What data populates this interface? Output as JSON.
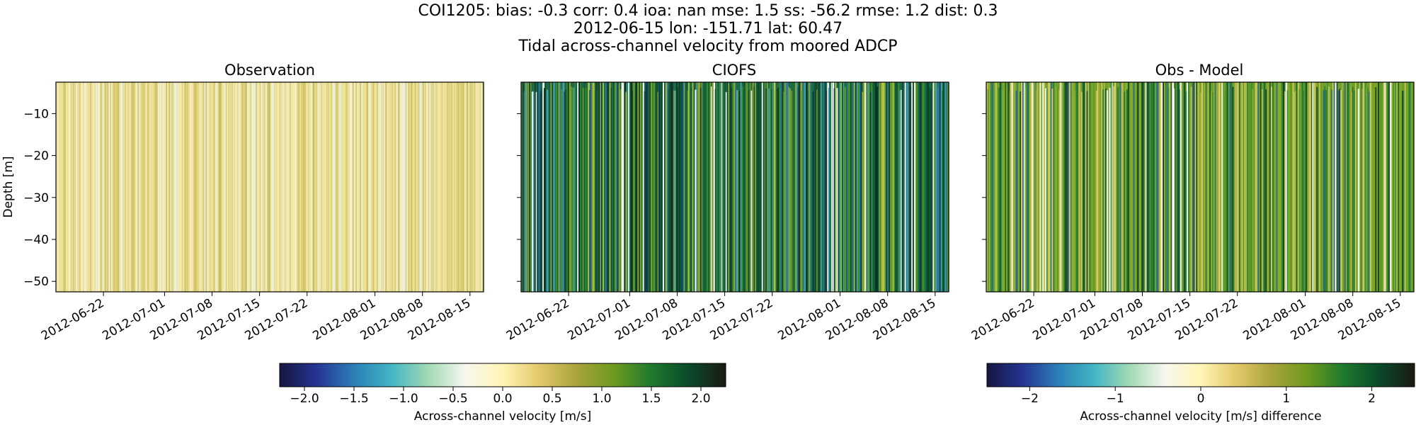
{
  "figure": {
    "title_lines": [
      "COI1205: bias: -0.3  corr: 0.4  ioa: nan  mse: 1.5  ss: -56.2  rmse: 1.2  dist: 0.3",
      "2012-06-15 lon: -151.71 lat: 60.47",
      "Tidal across-channel velocity from moored ADCP"
    ]
  },
  "colors": {
    "colormap": [
      "#16163f",
      "#253494",
      "#2c7fb8",
      "#41b6c4",
      "#a1dab4",
      "#f7f7f0",
      "#fff5b5",
      "#e3c86a",
      "#a8a33a",
      "#6e9a1e",
      "#1e7a2e",
      "#0a4a2a",
      "#1a1a10"
    ],
    "obs_base": "#fbf4c6",
    "obs_stripes": [
      "#e6d77e",
      "#d8c25a",
      "#c9b84a",
      "#eadf9a",
      "#bfb03c",
      "#dfe9e0"
    ],
    "model_stripes": [
      "#0b5a37",
      "#1b6e3a",
      "#3f8f2a",
      "#6f9e25",
      "#0f3d4f",
      "#2d7fa0",
      "#b9c94a",
      "#ffffff",
      "#15472b",
      "#48a6b4",
      "#94a92e",
      "#05301e"
    ],
    "diff_stripes": [
      "#7ea625",
      "#5f9a22",
      "#a4b13a",
      "#1e7a3a",
      "#c9c457",
      "#0d5a2f",
      "#ffffff",
      "#3d8f3a",
      "#e3cf72",
      "#2a6e8a",
      "#8fae2c",
      "#153d2a"
    ]
  },
  "chart_data": [
    {
      "type": "heatmap",
      "title": "Observation",
      "ylabel": "Depth [m]",
      "xlabel": "",
      "x_range": [
        "2012-06-15",
        "2012-08-17"
      ],
      "ylim": [
        -52.5,
        -2.5
      ],
      "xticks": [
        "2012-06-22",
        "2012-07-01",
        "2012-07-08",
        "2012-07-15",
        "2012-07-22",
        "2012-08-01",
        "2012-08-08",
        "2012-08-15"
      ],
      "yticks": [
        -10,
        -20,
        -30,
        -40,
        -50
      ],
      "ytick_labels": [
        "−10",
        "−20",
        "−30",
        "−40",
        "−50"
      ],
      "value_range": [
        -2.25,
        2.25
      ],
      "typical_values": [
        0.1,
        0.5
      ]
    },
    {
      "type": "heatmap",
      "title": "CIOFS",
      "x_range": [
        "2012-06-15",
        "2012-08-17"
      ],
      "ylim": [
        -52.5,
        -2.5
      ],
      "xticks": [
        "2012-06-22",
        "2012-07-01",
        "2012-07-08",
        "2012-07-15",
        "2012-07-22",
        "2012-08-01",
        "2012-08-08",
        "2012-08-15"
      ],
      "value_range": [
        -2.25,
        2.25
      ],
      "typical_values": [
        -1.5,
        2.2
      ]
    },
    {
      "type": "heatmap",
      "title": "Obs - Model",
      "x_range": [
        "2012-06-15",
        "2012-08-17"
      ],
      "ylim": [
        -52.5,
        -2.5
      ],
      "xticks": [
        "2012-06-22",
        "2012-07-01",
        "2012-07-08",
        "2012-07-15",
        "2012-07-22",
        "2012-08-01",
        "2012-08-08",
        "2012-08-15"
      ],
      "value_range": [
        -2.5,
        2.5
      ],
      "typical_values": [
        -1.0,
        2.5
      ]
    }
  ],
  "colorbars": [
    {
      "label": "Across-channel velocity [m/s]",
      "range": [
        -2.25,
        2.25
      ],
      "ticks": [
        -2.0,
        -1.5,
        -1.0,
        -0.5,
        0.0,
        0.5,
        1.0,
        1.5,
        2.0
      ],
      "tick_labels": [
        "−2.0",
        "−1.5",
        "−1.0",
        "−0.5",
        "0.0",
        "0.5",
        "1.0",
        "1.5",
        "2.0"
      ]
    },
    {
      "label": "Across-channel velocity [m/s] difference",
      "range": [
        -2.5,
        2.5
      ],
      "ticks": [
        -2,
        -1,
        0,
        1,
        2
      ],
      "tick_labels": [
        "−2",
        "−1",
        "0",
        "1",
        "2"
      ]
    }
  ]
}
